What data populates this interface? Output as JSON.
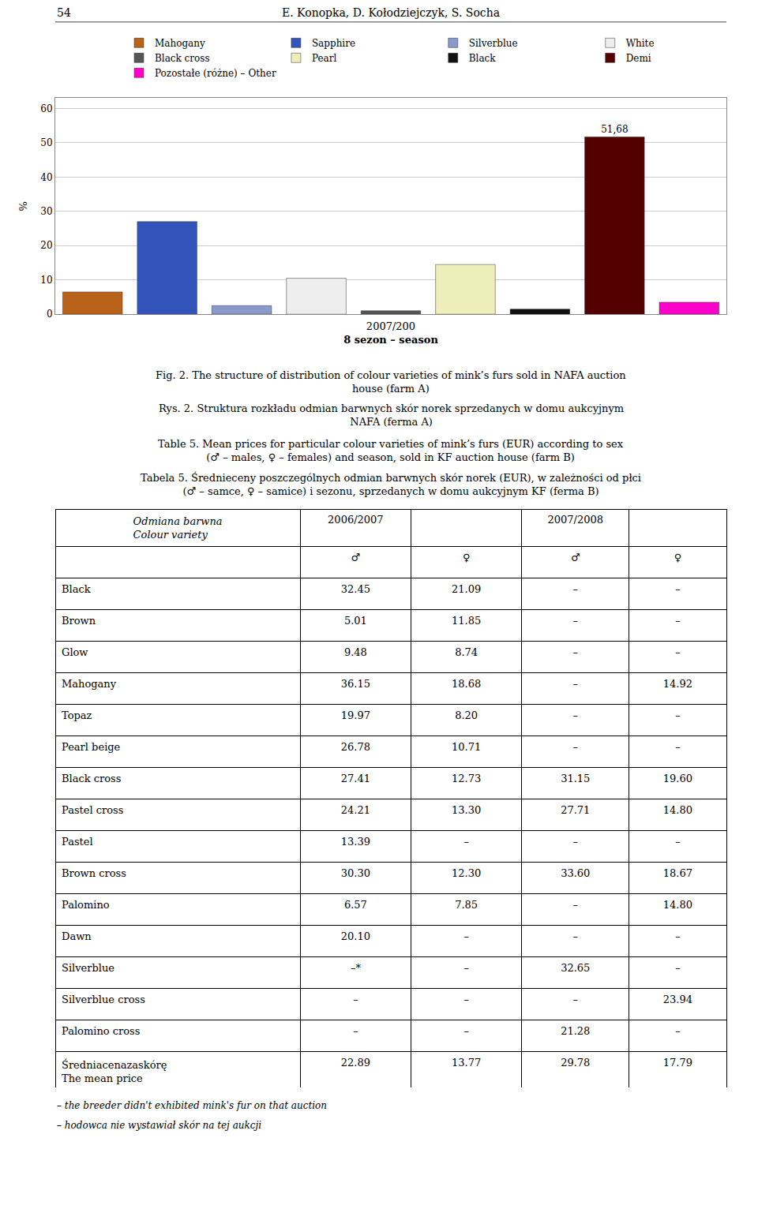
{
  "chart_data": [
    {
      "type": "bar",
      "title": "Fig. 2. The structure of distribution of colour varieties of mink’s furs sold in NAFA auction\nhouse (farm A)",
      "subtitle": "Rys. 2. Struktura rozkładu odmian barwnych skór norek sprzedanych w domu aukcyjnym\nNAFA (ferma A)",
      "annotations": [
        "54",
        "E. Konopka, D. Kołodziejczyk, S. Socha"
      ],
      "xlabel": [
        "2007/200",
        "8 sezon – season"
      ],
      "ylabel": "%",
      "categories": [
        "Mahogany",
        "Sapphire",
        "Silverblue",
        "White",
        "Black cross",
        "Pearl",
        "Black",
        "Demi",
        "Pozostałe (różne) – Other"
      ],
      "values": [
        6.5,
        27.0,
        2.5,
        10.5,
        1.0,
        14.5,
        1.5,
        51.68,
        3.5
      ],
      "colors": [
        "#b8621a",
        "#3355bb",
        "#8899cc",
        "#eeeeee",
        "#555555",
        "#eeeebb",
        "#111111",
        "#550000",
        "#ff00cc"
      ],
      "value_labels": [
        null,
        null,
        null,
        null,
        null,
        null,
        null,
        "51,68",
        null
      ],
      "ylim": [
        0,
        63
      ],
      "yticks": [
        0,
        10,
        20,
        30,
        40,
        50,
        60
      ],
      "grid": true,
      "legend": "top",
      "tick_labels": "y"
    },
    {
      "type": "table",
      "title": "Table 5. Mean prices for particular colour varieties of mink’s furs (EUR) according to sex\n(♂ – males, ♀ – females) and season, sold in KF auction house (farm B)",
      "subtitle": "Tabela 5. Średnieceny poszczególnych odmian barwnych skór norek (EUR), w zależności od płci\n(♂ – samce, ♀ – samice) i sezonu, sprzedanych w domu aukcyjnym KF (ferma B)",
      "header": [
        "Odmiana barwna\nColour variety",
        "2006/2007",
        "2007/2008"
      ],
      "subheader": [
        "♂",
        "♀"
      ],
      "rows": [
        [
          "Black",
          "32.45",
          "21.09",
          "–",
          "–"
        ],
        [
          "Brown",
          "5.01",
          "11.85",
          "–",
          "–"
        ],
        [
          "Glow",
          "9.48",
          "8.74",
          "–",
          "–"
        ],
        [
          "Mahogany",
          "36.15",
          "18.68",
          "–",
          "14.92"
        ],
        [
          "Topaz",
          "19.97",
          "8.20",
          "–",
          "–"
        ],
        [
          "Pearl beige",
          "26.78",
          "10.71",
          "–",
          "–"
        ],
        [
          "Black cross",
          "27.41",
          "12.73",
          "31.15",
          "19.60"
        ],
        [
          "Pastel cross",
          "24.21",
          "13.30",
          "27.71",
          "14.80"
        ],
        [
          "Pastel",
          "13.39",
          "–",
          "–",
          "–"
        ],
        [
          "Brown cross",
          "30.30",
          "12.30",
          "33.60",
          "18.67"
        ],
        [
          "Palomino",
          "6.57",
          "7.85",
          "–",
          "14.80"
        ],
        [
          "Dawn",
          "20.10",
          "–",
          "–",
          "–"
        ],
        [
          "Silverblue",
          "–*",
          "–",
          "32.65",
          "–"
        ],
        [
          "Silverblue cross",
          "–",
          "–",
          "–",
          "23.94"
        ],
        [
          "Palomino cross",
          "–",
          "–",
          "21.28",
          "–"
        ],
        [
          "Średniacenazaskórę\nThe mean price",
          "22.89",
          "13.77",
          "29.78",
          "17.79"
        ]
      ],
      "annotations": [
        "– the breeder didn't exhibited mink's fur on that auction",
        "– hodowca nie wystawiał skór na tej aukcji"
      ]
    }
  ]
}
